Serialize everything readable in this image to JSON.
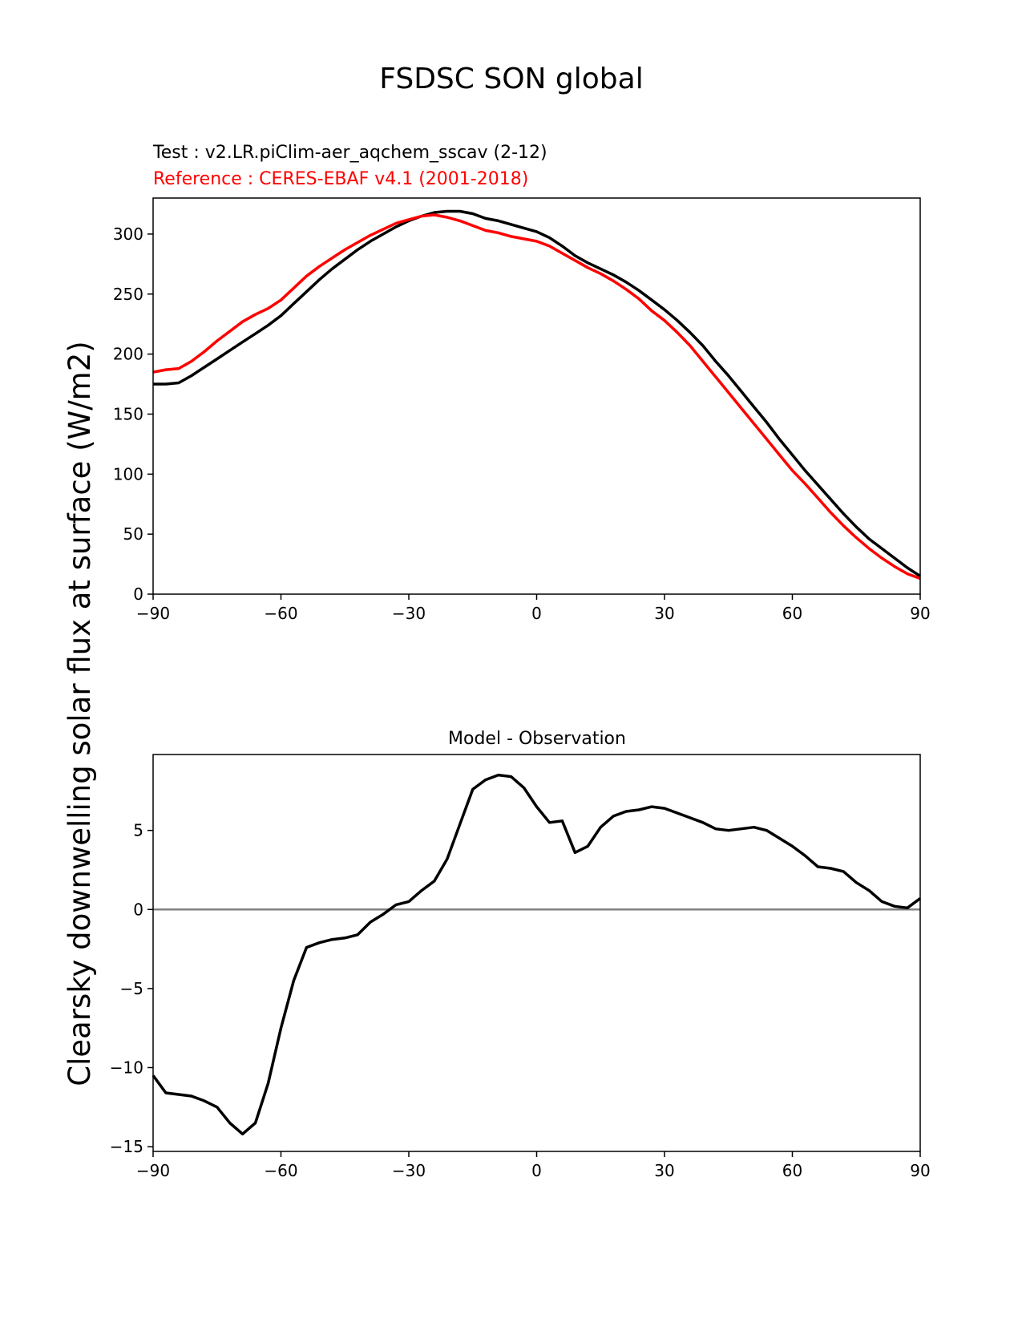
{
  "figure": {
    "title": "FSDSC SON global",
    "ylabel": "Clearsky downwelling solar flux at surface (W/m2)"
  },
  "chart_data": [
    {
      "type": "line",
      "test_label": "Test : v2.LR.piClim-aer_aqchem_sscav (2-12)",
      "reference_label": "Reference : CERES-EBAF v4.1 (2001-2018)",
      "xlim": [
        -90,
        90
      ],
      "ylim": [
        0,
        330
      ],
      "xticks": [
        -90,
        -60,
        -30,
        0,
        30,
        60,
        90
      ],
      "yticks": [
        0,
        50,
        100,
        150,
        200,
        250,
        300
      ],
      "x": [
        -90,
        -87,
        -84,
        -81,
        -78,
        -75,
        -72,
        -69,
        -66,
        -63,
        -60,
        -57,
        -54,
        -51,
        -48,
        -45,
        -42,
        -39,
        -36,
        -33,
        -30,
        -27,
        -24,
        -21,
        -18,
        -15,
        -12,
        -9,
        -6,
        -3,
        0,
        3,
        6,
        9,
        12,
        15,
        18,
        21,
        24,
        27,
        30,
        33,
        36,
        39,
        42,
        45,
        48,
        51,
        54,
        57,
        60,
        63,
        66,
        69,
        72,
        75,
        78,
        81,
        84,
        87,
        90
      ],
      "series": [
        {
          "name": "Test",
          "color": "#000000",
          "values": [
            175,
            175,
            176,
            182,
            189,
            196,
            203,
            210,
            217,
            224,
            232,
            242,
            252,
            262,
            271,
            279,
            287,
            294,
            300,
            306,
            311,
            315,
            318,
            319,
            319,
            317,
            313,
            311,
            308,
            305,
            302,
            297,
            290,
            282,
            276,
            271,
            266,
            260,
            253,
            245,
            237,
            228,
            218,
            207,
            194,
            182,
            169,
            156,
            143,
            129,
            116,
            103,
            91,
            79,
            67,
            56,
            46,
            38,
            30,
            22,
            15
          ]
        },
        {
          "name": "Reference",
          "color": "#ff0000",
          "values": [
            185,
            187,
            188,
            194,
            202,
            211,
            219,
            227,
            233,
            238,
            245,
            255,
            265,
            273,
            280,
            287,
            293,
            299,
            304,
            309,
            312,
            315,
            316,
            314,
            311,
            307,
            303,
            301,
            298,
            296,
            294,
            290,
            284,
            278,
            272,
            267,
            261,
            254,
            246,
            236,
            228,
            218,
            207,
            194,
            181,
            168,
            155,
            142,
            129,
            116,
            103,
            92,
            80,
            68,
            57,
            47,
            38,
            30,
            23,
            17,
            13
          ]
        }
      ]
    },
    {
      "type": "line",
      "title": "Model - Observation",
      "xlim": [
        -90,
        90
      ],
      "ylim": [
        -15.3,
        9.8
      ],
      "xticks": [
        -90,
        -60,
        -30,
        0,
        30,
        60,
        90
      ],
      "yticks": [
        -15,
        -10,
        -5,
        0,
        5
      ],
      "zero_line_color": "#808080",
      "x": [
        -90,
        -87,
        -84,
        -81,
        -78,
        -75,
        -72,
        -69,
        -66,
        -63,
        -60,
        -57,
        -54,
        -51,
        -48,
        -45,
        -42,
        -39,
        -36,
        -33,
        -30,
        -27,
        -24,
        -21,
        -18,
        -15,
        -12,
        -9,
        -6,
        -3,
        0,
        3,
        6,
        9,
        12,
        15,
        18,
        21,
        24,
        27,
        30,
        33,
        36,
        39,
        42,
        45,
        48,
        51,
        54,
        57,
        60,
        63,
        66,
        69,
        72,
        75,
        78,
        81,
        84,
        87,
        90
      ],
      "series": [
        {
          "name": "Model - Observation",
          "color": "#000000",
          "values": [
            -10.5,
            -11.6,
            -11.7,
            -11.8,
            -12.1,
            -12.5,
            -13.5,
            -14.2,
            -13.5,
            -11.0,
            -7.5,
            -4.5,
            -2.4,
            -2.1,
            -1.9,
            -1.8,
            -1.6,
            -0.8,
            -0.3,
            0.3,
            0.5,
            1.2,
            1.8,
            3.2,
            5.4,
            7.6,
            8.2,
            8.5,
            8.4,
            7.7,
            6.5,
            5.5,
            5.6,
            3.6,
            4.0,
            5.2,
            5.9,
            6.2,
            6.3,
            6.5,
            6.4,
            6.1,
            5.8,
            5.5,
            5.1,
            5.0,
            5.1,
            5.2,
            5.0,
            4.5,
            4.0,
            3.4,
            2.7,
            2.6,
            2.4,
            1.7,
            1.2,
            0.5,
            0.2,
            0.1,
            0.7
          ]
        }
      ]
    }
  ]
}
